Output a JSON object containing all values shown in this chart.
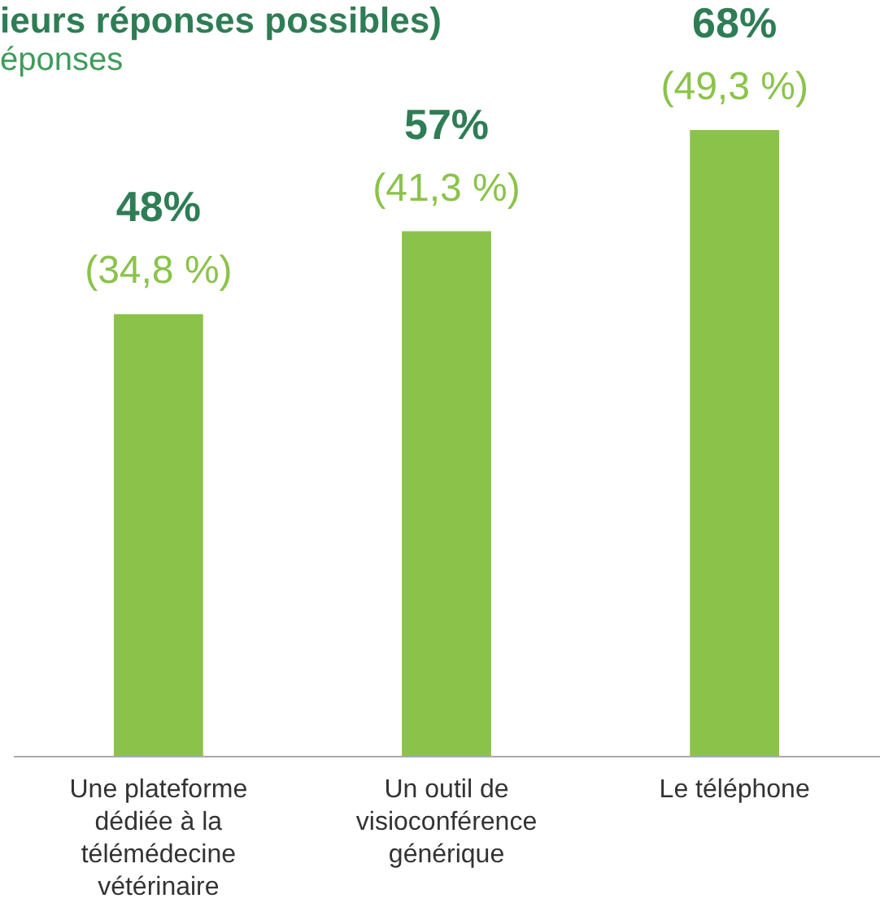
{
  "chart_data": {
    "type": "bar",
    "title": "ieurs réponses possibles)",
    "subtitle": "éponses",
    "categories": [
      "Une plateforme\ndédiée à la\ntélémédecine\nvétérinaire",
      "Un outil de\nvisioconférence\ngénérique",
      "Le téléphone"
    ],
    "values": [
      48,
      57,
      68
    ],
    "color": "#8bc34a",
    "value_labels": [
      "48%",
      "57%",
      "68%"
    ],
    "annotations": [
      "(34,8 %)",
      "(41,3 %)",
      "(49,3 %)"
    ],
    "grid": false
  }
}
